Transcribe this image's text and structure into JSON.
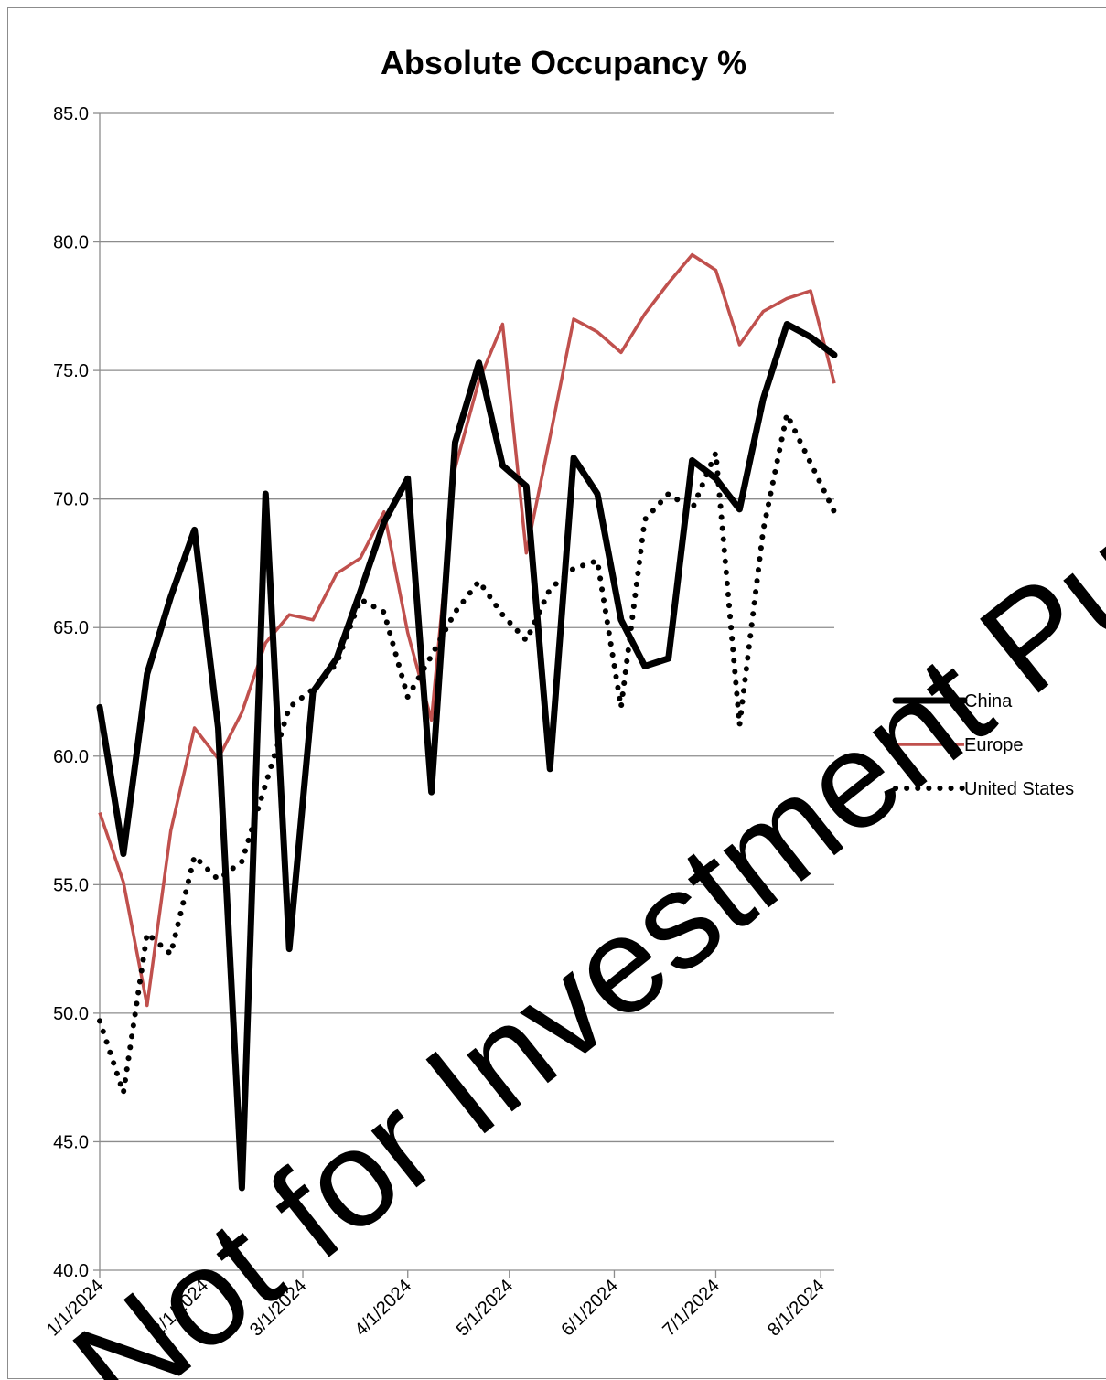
{
  "chart_data": {
    "type": "line",
    "title": "Absolute Occupancy %",
    "xlabel": "",
    "ylabel": "",
    "ylim": [
      40,
      85
    ],
    "xlim": [
      "2024-01-01",
      "2024-08-05"
    ],
    "yticks": [
      "40.0",
      "45.0",
      "50.0",
      "55.0",
      "60.0",
      "65.0",
      "70.0",
      "75.0",
      "80.0",
      "85.0"
    ],
    "xticks": [
      "1/1/2024",
      "2/1/2024",
      "3/1/2024",
      "4/1/2024",
      "5/1/2024",
      "6/1/2024",
      "7/1/2024",
      "8/1/2024"
    ],
    "grid": "horizontal",
    "legend": "right",
    "x": [
      "2024-01-01",
      "2024-01-08",
      "2024-01-15",
      "2024-01-22",
      "2024-01-29",
      "2024-02-05",
      "2024-02-12",
      "2024-02-19",
      "2024-02-26",
      "2024-03-04",
      "2024-03-11",
      "2024-03-18",
      "2024-03-25",
      "2024-04-01",
      "2024-04-08",
      "2024-04-15",
      "2024-04-22",
      "2024-04-29",
      "2024-05-06",
      "2024-05-13",
      "2024-05-20",
      "2024-05-27",
      "2024-06-03",
      "2024-06-10",
      "2024-06-17",
      "2024-06-24",
      "2024-07-01",
      "2024-07-08",
      "2024-07-15",
      "2024-07-22",
      "2024-07-29",
      "2024-08-05"
    ],
    "series": [
      {
        "name": "China",
        "color": "#000000",
        "style": "solid-thick",
        "values": [
          61.9,
          56.2,
          63.2,
          66.2,
          68.8,
          61.1,
          43.2,
          70.2,
          52.5,
          62.5,
          63.8,
          66.4,
          69.1,
          70.8,
          58.6,
          72.2,
          75.3,
          71.3,
          70.5,
          59.5,
          71.6,
          70.2,
          65.3,
          63.5,
          63.8,
          71.5,
          70.8,
          69.6,
          73.9,
          76.8,
          76.3,
          75.6
        ]
      },
      {
        "name": "Europe",
        "color": "#c0504d",
        "style": "solid",
        "values": [
          57.8,
          55.1,
          50.3,
          57.1,
          61.1,
          59.9,
          61.7,
          64.4,
          65.5,
          65.3,
          67.1,
          67.7,
          69.5,
          64.8,
          61.4,
          71.2,
          74.6,
          76.8,
          67.9,
          72.4,
          77.0,
          76.5,
          75.7,
          77.2,
          78.4,
          79.5,
          78.9,
          76.0,
          77.3,
          77.8,
          78.1,
          74.5
        ]
      },
      {
        "name": "United States",
        "color": "#000000",
        "style": "dotted",
        "values": [
          49.7,
          46.9,
          53.1,
          52.3,
          56.1,
          55.2,
          55.9,
          58.9,
          61.9,
          62.6,
          63.6,
          66.1,
          65.6,
          62.3,
          63.9,
          65.6,
          66.8,
          65.5,
          64.5,
          66.5,
          67.3,
          67.6,
          61.9,
          69.2,
          70.2,
          69.6,
          71.8,
          61.2,
          68.8,
          73.3,
          71.4,
          69.5
        ]
      }
    ]
  },
  "watermark": "Not for Investment Purpose"
}
